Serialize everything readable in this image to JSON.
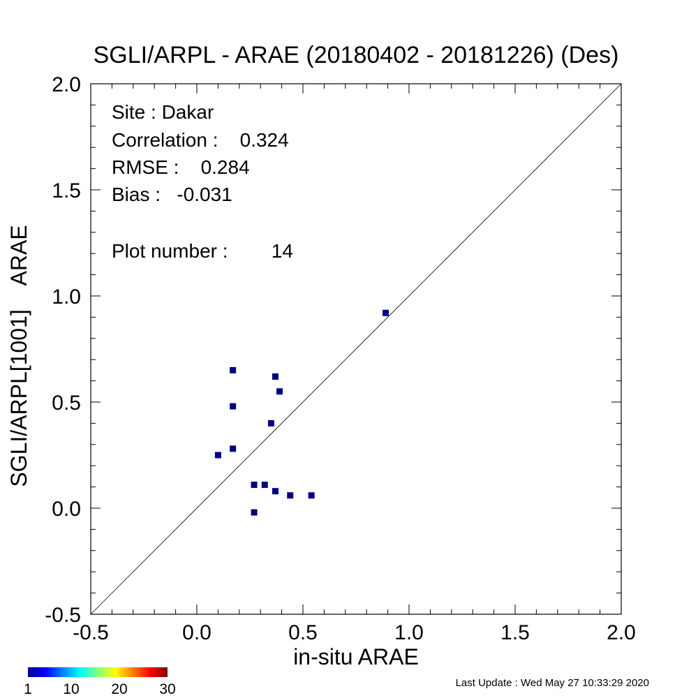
{
  "chart_data": {
    "type": "scatter",
    "title": "SGLI/ARPL - ARAE (20180402 - 20181226) (Des)",
    "xlabel": "in-situ ARAE",
    "ylabel": "SGLI/ARPL[1001]    ARAE",
    "xlim": [
      -0.5,
      2.0
    ],
    "ylim": [
      -0.5,
      2.0
    ],
    "xticks": [
      "-0.5",
      "0.0",
      "0.5",
      "1.0",
      "1.5",
      "2.0"
    ],
    "yticks": [
      "-0.5",
      "0.0",
      "0.5",
      "1.0",
      "1.5",
      "2.0"
    ],
    "reference_line": "1:1",
    "point_color": "#00007f",
    "points": [
      {
        "x": 0.1,
        "y": 0.25
      },
      {
        "x": 0.17,
        "y": 0.28
      },
      {
        "x": 0.17,
        "y": 0.48
      },
      {
        "x": 0.17,
        "y": 0.65
      },
      {
        "x": 0.27,
        "y": 0.11
      },
      {
        "x": 0.27,
        "y": -0.02
      },
      {
        "x": 0.32,
        "y": 0.11
      },
      {
        "x": 0.35,
        "y": 0.4
      },
      {
        "x": 0.37,
        "y": 0.08
      },
      {
        "x": 0.37,
        "y": 0.62
      },
      {
        "x": 0.39,
        "y": 0.55
      },
      {
        "x": 0.44,
        "y": 0.06
      },
      {
        "x": 0.54,
        "y": 0.06
      },
      {
        "x": 0.89,
        "y": 0.92
      }
    ],
    "annotations": {
      "site": "Site : Dakar",
      "correlation": "Correlation :    0.324",
      "rmse": "RMSE :    0.284",
      "bias": "Bias :   -0.031",
      "plot_number": "Plot number :        14"
    },
    "colorbar": {
      "labels": [
        "1",
        "10",
        "20",
        "30"
      ],
      "values": [
        1,
        10,
        20,
        30
      ],
      "range": [
        1,
        30
      ],
      "colormap": "jet"
    }
  },
  "footer": {
    "last_update": "Last Update : Wed May 27 10:33:29 2020"
  }
}
